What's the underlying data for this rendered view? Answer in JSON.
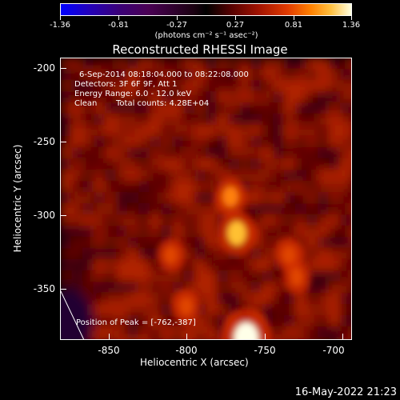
{
  "colorbar": {
    "ticks": [
      "-1.36",
      "-0.81",
      "-0.27",
      "0.27",
      "0.81",
      "1.36"
    ],
    "units": "(photons cm⁻² s⁻¹ asec⁻²)",
    "range": [
      -1.36,
      1.36
    ]
  },
  "chart_data": {
    "type": "heatmap",
    "title": "Reconstructed RHESSI Image",
    "xlabel": "Heliocentric X (arcsec)",
    "ylabel": "Heliocentric Y (arcsec)",
    "xlim": [
      -880,
      -695
    ],
    "ylim": [
      -388,
      -195
    ],
    "x_ticks": [
      "-850",
      "-800",
      "-750",
      "-700"
    ],
    "y_ticks": [
      "-200",
      "-250",
      "-300",
      "-350"
    ],
    "x_tick_values": [
      -850,
      -800,
      -750,
      -700
    ],
    "y_tick_values": [
      -200,
      -250,
      -300,
      -350
    ],
    "colorscale": [
      "#000000",
      "#5a0000",
      "#b01800",
      "#e84000",
      "#ff9000",
      "#ffe070",
      "#ffffe0"
    ],
    "sources": [
      {
        "x": -762,
        "y": -387,
        "peak": 1.36
      },
      {
        "x": -768,
        "y": -315,
        "peak": 0.95
      },
      {
        "x": -772,
        "y": -290,
        "peak": 0.7
      },
      {
        "x": -735,
        "y": -330,
        "peak": 0.55
      },
      {
        "x": -730,
        "y": -345,
        "peak": 0.5
      },
      {
        "x": -800,
        "y": -365,
        "peak": 0.5
      },
      {
        "x": -810,
        "y": -330,
        "peak": 0.4
      }
    ],
    "annotations": [
      "6-Sep-2014 08:18:04.000 to 08:22:08.000",
      "Detectors: 3F 6F 9F, Att 1",
      "Energy Range: 6.0 - 12.0 keV",
      "Clean",
      "Total counts: 4.28E+04",
      "Position of Peak = [-762,-387]"
    ]
  },
  "footer_timestamp": "16-May-2022 21:23"
}
